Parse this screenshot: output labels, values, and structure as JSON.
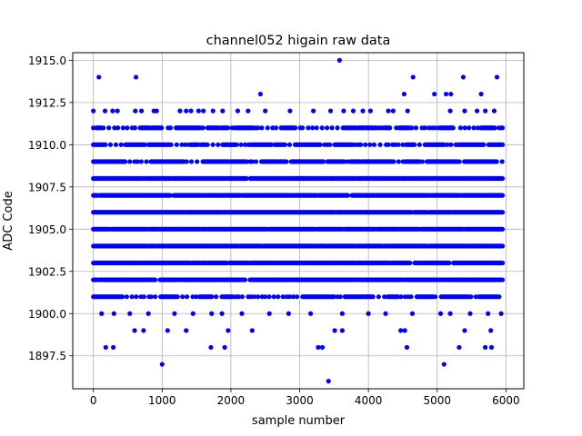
{
  "chart_data": {
    "type": "scatter",
    "title": "channel052 higain raw data",
    "xlabel": "sample number",
    "ylabel": "ADC Code",
    "xlim": [
      -300,
      6260
    ],
    "ylim": [
      1895.55,
      1915.45
    ],
    "xticks": [
      0,
      1000,
      2000,
      3000,
      4000,
      5000,
      6000
    ],
    "xtick_labels": [
      "0",
      "1000",
      "2000",
      "3000",
      "4000",
      "5000",
      "6000"
    ],
    "yticks": [
      1897.5,
      1900.0,
      1902.5,
      1905.0,
      1907.5,
      1910.0,
      1912.5,
      1915.0
    ],
    "ytick_labels": [
      "1897.5",
      "1900.0",
      "1902.5",
      "1905.0",
      "1907.5",
      "1910.0",
      "1912.5",
      "1915.0"
    ],
    "grid": true,
    "legend": "none",
    "marker_color": "#0000ff",
    "series": [
      {
        "points": [
          [
            0,
            1912
          ],
          [
            80,
            1914
          ],
          [
            170,
            1912
          ],
          [
            280,
            1912
          ],
          [
            350,
            1912
          ],
          [
            620,
            1914
          ],
          [
            610,
            1912
          ],
          [
            700,
            1912
          ],
          [
            880,
            1912
          ],
          [
            920,
            1912
          ],
          [
            1260,
            1912
          ],
          [
            1350,
            1912
          ],
          [
            1420,
            1912
          ],
          [
            1530,
            1912
          ],
          [
            1600,
            1912
          ],
          [
            1740,
            1912
          ],
          [
            1880,
            1912
          ],
          [
            2100,
            1912
          ],
          [
            2250,
            1912
          ],
          [
            2430,
            1913
          ],
          [
            2500,
            1912
          ],
          [
            2860,
            1912
          ],
          [
            3200,
            1912
          ],
          [
            3450,
            1912
          ],
          [
            3580,
            1915
          ],
          [
            3640,
            1912
          ],
          [
            3780,
            1912
          ],
          [
            3920,
            1912
          ],
          [
            4030,
            1912
          ],
          [
            4290,
            1912
          ],
          [
            4360,
            1912
          ],
          [
            4520,
            1913
          ],
          [
            4570,
            1912
          ],
          [
            4650,
            1914
          ],
          [
            4960,
            1913
          ],
          [
            5130,
            1913
          ],
          [
            5200,
            1913
          ],
          [
            5190,
            1912
          ],
          [
            5380,
            1914
          ],
          [
            5400,
            1912
          ],
          [
            5580,
            1912
          ],
          [
            5640,
            1913
          ],
          [
            5700,
            1912
          ],
          [
            5830,
            1912
          ],
          [
            5870,
            1914
          ],
          [
            180,
            1898
          ],
          [
            290,
            1898
          ],
          [
            1000,
            1897
          ],
          [
            1710,
            1898
          ],
          [
            1910,
            1898
          ],
          [
            3270,
            1898
          ],
          [
            3330,
            1898
          ],
          [
            3420,
            1896
          ],
          [
            4560,
            1898
          ],
          [
            5100,
            1897
          ],
          [
            5320,
            1898
          ],
          [
            5700,
            1898
          ],
          [
            5790,
            1898
          ],
          [
            600,
            1899
          ],
          [
            730,
            1899
          ],
          [
            1080,
            1899
          ],
          [
            1350,
            1899
          ],
          [
            1960,
            1899
          ],
          [
            2310,
            1899
          ],
          [
            3510,
            1899
          ],
          [
            3620,
            1899
          ],
          [
            4470,
            1899
          ],
          [
            4530,
            1899
          ],
          [
            5400,
            1899
          ],
          [
            5780,
            1899
          ],
          [
            120,
            1900
          ],
          [
            300,
            1900
          ],
          [
            530,
            1900
          ],
          [
            800,
            1900
          ],
          [
            1180,
            1900
          ],
          [
            1450,
            1900
          ],
          [
            1720,
            1900
          ],
          [
            1870,
            1900
          ],
          [
            2160,
            1900
          ],
          [
            2560,
            1900
          ],
          [
            2840,
            1900
          ],
          [
            3160,
            1900
          ],
          [
            3620,
            1900
          ],
          [
            4000,
            1900
          ],
          [
            4250,
            1900
          ],
          [
            4640,
            1900
          ],
          [
            5050,
            1900
          ],
          [
            5190,
            1900
          ],
          [
            5480,
            1900
          ],
          [
            5740,
            1900
          ],
          [
            5930,
            1900
          ]
        ]
      }
    ]
  }
}
